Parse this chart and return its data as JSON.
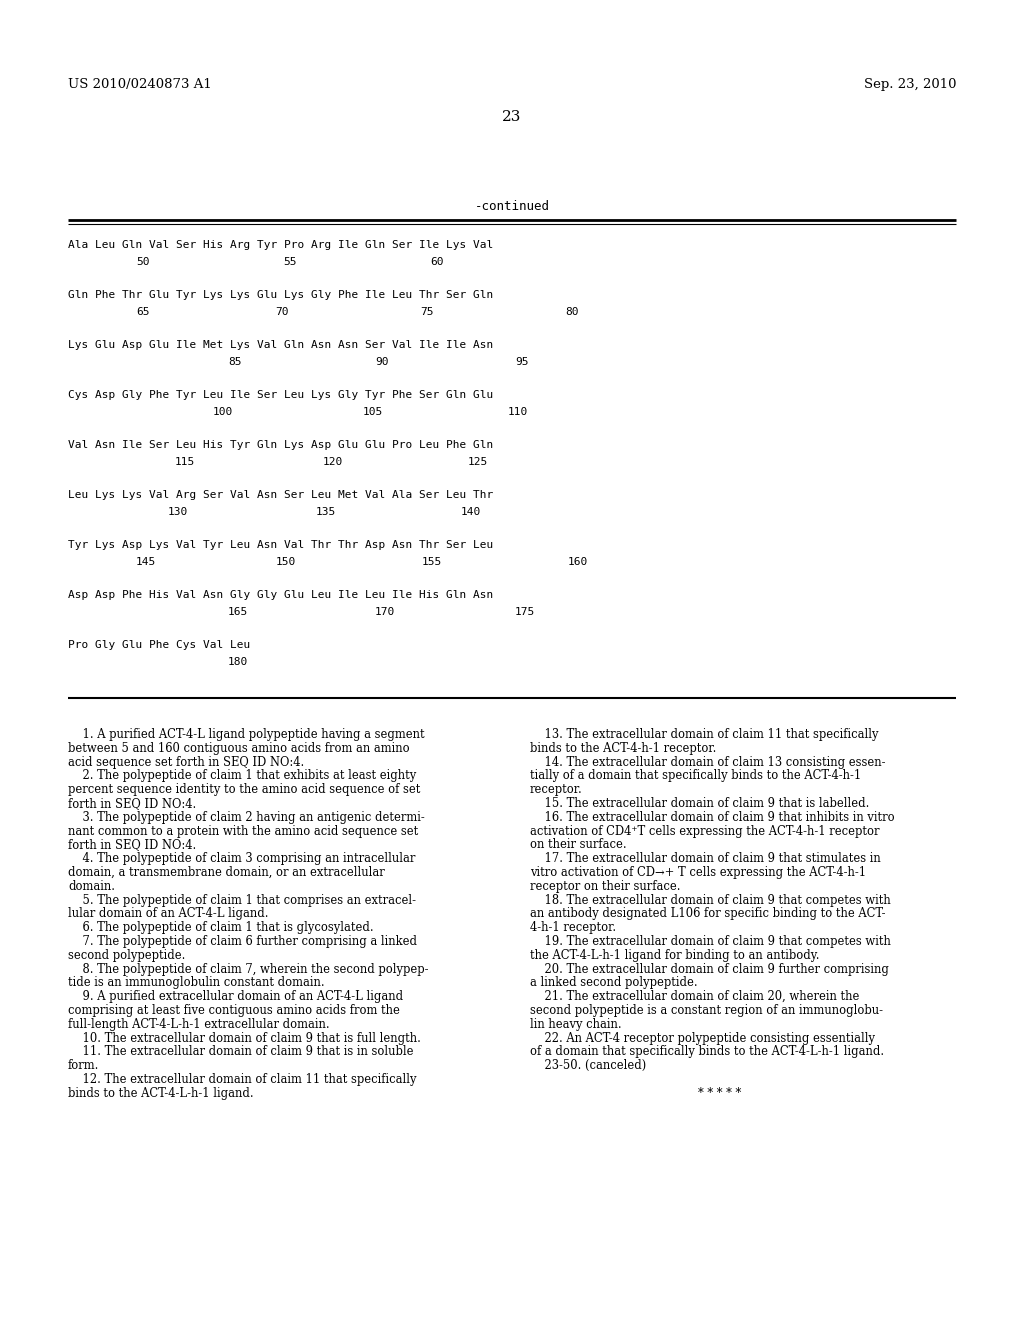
{
  "background_color": "#ffffff",
  "header_left": "US 2010/0240873 A1",
  "header_right": "Sep. 23, 2010",
  "page_number": "23",
  "continued_label": "-continued",
  "seq_data": [
    {
      "line": "Ala Leu Gln Val Ser His Arg Tyr Pro Arg Ile Gln Ser Ile Lys Val",
      "nums": [
        [
          "50",
          68
        ],
        [
          "55",
          215
        ],
        [
          "60",
          362
        ]
      ]
    },
    {
      "line": "Gln Phe Thr Glu Tyr Lys Lys Glu Lys Gly Phe Ile Leu Thr Ser Gln",
      "nums": [
        [
          "65",
          68
        ],
        [
          "70",
          207
        ],
        [
          "75",
          352
        ],
        [
          "80",
          497
        ]
      ]
    },
    {
      "line": "Lys Glu Asp Glu Ile Met Lys Val Gln Asn Asn Ser Val Ile Ile Asn",
      "nums": [
        [
          "85",
          160
        ],
        [
          "90",
          307
        ],
        [
          "95",
          447
        ]
      ]
    },
    {
      "line": "Cys Asp Gly Phe Tyr Leu Ile Ser Leu Lys Gly Tyr Phe Ser Gln Glu",
      "nums": [
        [
          "100",
          145
        ],
        [
          "105",
          295
        ],
        [
          "110",
          440
        ]
      ]
    },
    {
      "line": "Val Asn Ile Ser Leu His Tyr Gln Lys Asp Glu Glu Pro Leu Phe Gln",
      "nums": [
        [
          "115",
          107
        ],
        [
          "120",
          255
        ],
        [
          "125",
          400
        ]
      ]
    },
    {
      "line": "Leu Lys Lys Val Arg Ser Val Asn Ser Leu Met Val Ala Ser Leu Thr",
      "nums": [
        [
          "130",
          100
        ],
        [
          "135",
          248
        ],
        [
          "140",
          393
        ]
      ]
    },
    {
      "line": "Tyr Lys Asp Lys Val Tyr Leu Asn Val Thr Thr Asp Asn Thr Ser Leu",
      "nums": [
        [
          "145",
          68
        ],
        [
          "150",
          208
        ],
        [
          "155",
          354
        ],
        [
          "160",
          500
        ]
      ]
    },
    {
      "line": "Asp Asp Phe His Val Asn Gly Gly Glu Leu Ile Leu Ile His Gln Asn",
      "nums": [
        [
          "165",
          160
        ],
        [
          "170",
          307
        ],
        [
          "175",
          447
        ]
      ]
    },
    {
      "line": "Pro Gly Glu Phe Cys Val Leu",
      "nums": [
        [
          "180",
          160
        ]
      ]
    }
  ],
  "claims_left": [
    "    ·1. A purified ACT-4-L ligand polypeptide having a segment",
    "between 5 and 160 contiguous amino acids from an amino",
    "acid sequence set forth in SEQ ID NO:4.",
    "    ·2. The polypeptide of claim ·1 that exhibits at least eighty",
    "percent sequence identity to the amino acid sequence of set",
    "forth in SEQ ID NO:4.",
    "    ·3. The polypeptide of claim ·2 having an antigenic determi-",
    "nant common to a protein with the amino acid sequence set",
    "forth in SEQ ID NO:4.",
    "    ·4. The polypeptide of claim ·3 comprising an intracellular",
    "domain, a transmembrane domain, or an extracellular",
    "domain.",
    "    ·5. The polypeptide of claim ·1 that comprises an extracel-",
    "lular domain of an ACT-4-L ligand.",
    "    ·6. The polypeptide of claim ·1 that is glycosylated.",
    "    ·7. The polypeptide of claim ·6 further comprising a linked",
    "second polypeptide.",
    "    ·8. The polypeptide of claim ·7, wherein the second polypep-",
    "tide is an immunoglobulin constant domain.",
    "    ·9. A purified extracellular domain of an ACT-4-L ligand",
    "comprising at least five contiguous amino acids from the",
    "full-length ACT-4-L-h-1 extracellular domain.",
    "    ·10. The extracellular domain of claim ·9 that is full length.",
    "    ·11. The extracellular domain of claim ·9 that is in soluble",
    "form.",
    "    ·12. The extracellular domain of claim ·11 that specifically",
    "binds to the ACT-4-L-h-1 ligand."
  ],
  "claims_right": [
    "    ·13. The extracellular domain of claim ·11 that specifically",
    "binds to the ACT-4-h-1 receptor.",
    "    ·14. The extracellular domain of claim ·13 consisting essen-",
    "tially of a domain that specifically binds to the ACT-4-h-1",
    "receptor.",
    "    ·15. The extracellular domain of claim ·9 that is labelled.",
    "    ·16. The extracellular domain of claim ·9 that inhibits in vitro",
    "activation of CD4⁺T cells expressing the ACT-4-h-1 receptor",
    "on their surface.",
    "    ·17. The extracellular domain of claim ·9 that stimulates in",
    "vitro activation of CD→+ T cells expressing the ACT-4-h-1",
    "receptor on their surface.",
    "    ·18. The extracellular domain of claim ·9 that competes with",
    "an antibody designated L106 for specific binding to the ACT-",
    "4-h-1 receptor.",
    "    ·19. The extracellular domain of claim ·9 that competes with",
    "the ACT-4-L-h-1 ligand for binding to an antibody.",
    "    ·20. The extracellular domain of claim ·9 further comprising",
    "a linked second polypeptide.",
    "    ·21. The extracellular domain of claim ·20, wherein the",
    "second polypeptide is a constant region of an immunoglobu-",
    "lin heavy chain.",
    "    ·22. An ACT-4 receptor polypeptide consisting essentially",
    "of a domain that specifically binds to the ACT-4-L-h-1 ligand.",
    "    ·23-50. (canceled)",
    "",
    "* * * * *"
  ]
}
